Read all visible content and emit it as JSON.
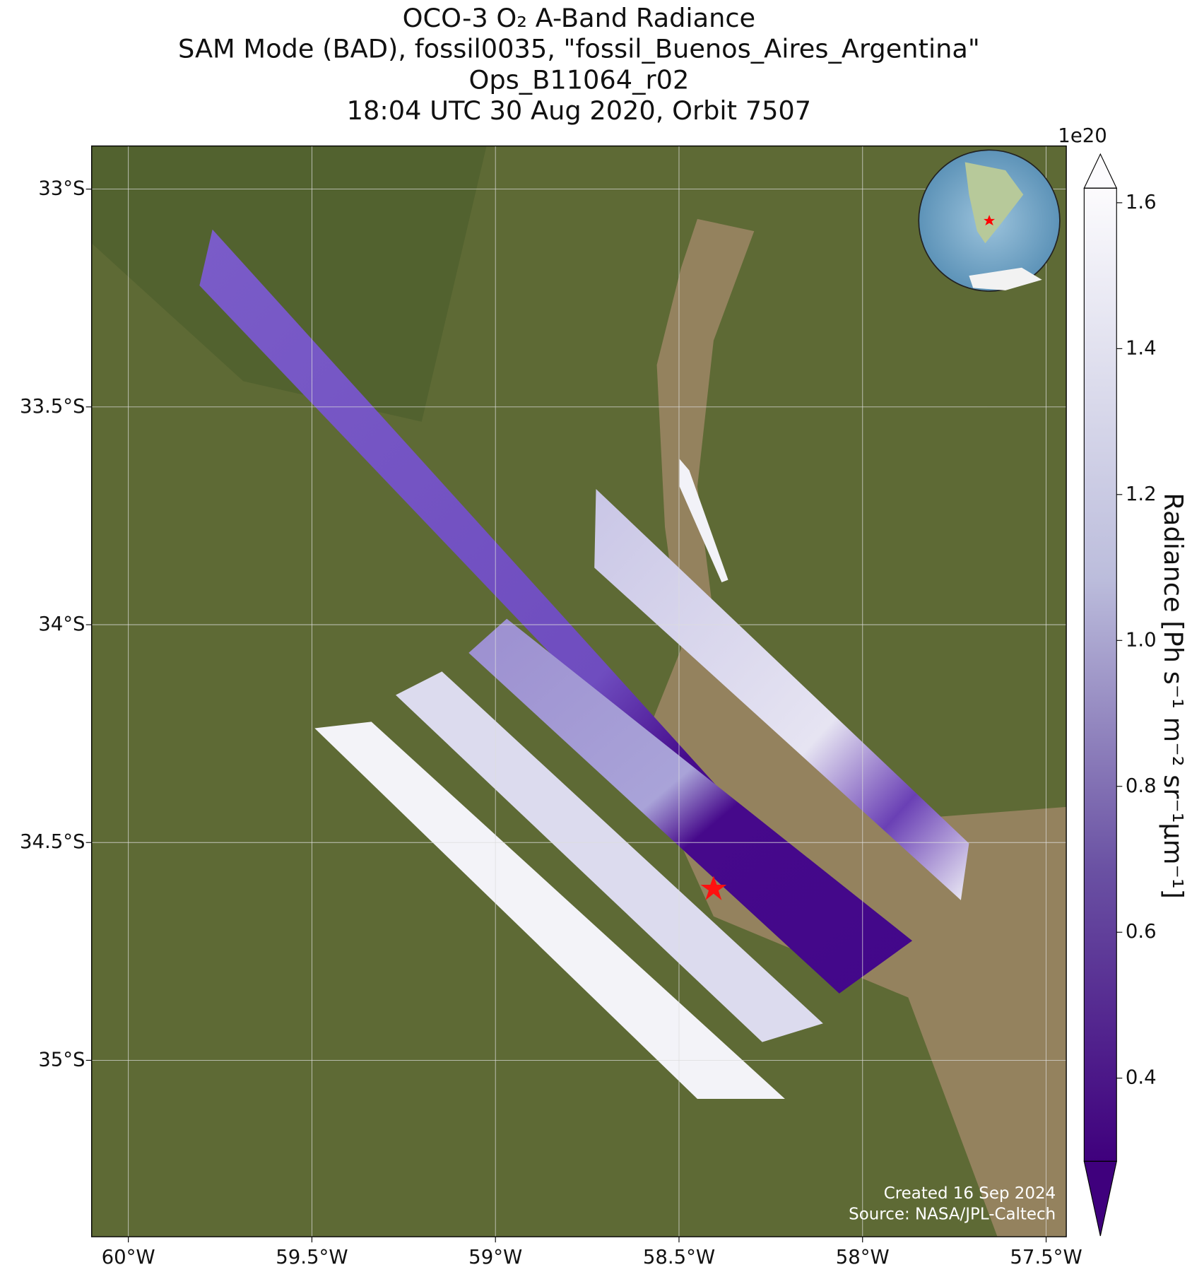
{
  "map": {
    "title_lines": [
      "OCO-3 O₂ A-Band Radiance",
      "SAM Mode (BAD), fossil0035, \"fossil_Buenos_Aires_Argentina\"",
      "Ops_B11064_r02",
      "18:04 UTC 30 Aug 2020, Orbit 7507"
    ],
    "xlim": [
      -60.1,
      -57.445
    ],
    "ylim": [
      -35.405,
      -32.901
    ],
    "xticks": [
      {
        "value": -60,
        "label": "60°W"
      },
      {
        "value": -59.5,
        "label": "59.5°W"
      },
      {
        "value": -59,
        "label": "59°W"
      },
      {
        "value": -58.5,
        "label": "58.5°W"
      },
      {
        "value": -58,
        "label": "58°W"
      },
      {
        "value": -57.5,
        "label": "57.5°W"
      }
    ],
    "yticks": [
      {
        "value": -33,
        "label": "33°S"
      },
      {
        "value": -33.5,
        "label": "33.5°S"
      },
      {
        "value": -34,
        "label": "34°S"
      },
      {
        "value": -34.5,
        "label": "34.5°S"
      },
      {
        "value": -35,
        "label": "35°S"
      }
    ],
    "colorbar": {
      "label": "Radiance [Ph s⁻¹ m⁻² sr⁻¹μm⁻¹]",
      "offset_label": "1e20",
      "lim": [
        0.286,
        1.62
      ],
      "ticks": [
        0.4,
        0.6,
        0.8,
        {
          "value": 1,
          "label": "1.0"
        },
        1.2,
        1.4,
        1.6
      ]
    },
    "credits": [
      "Created 16 Sep 2024",
      "Source: NASA/JPL-Caltech"
    ]
  }
}
